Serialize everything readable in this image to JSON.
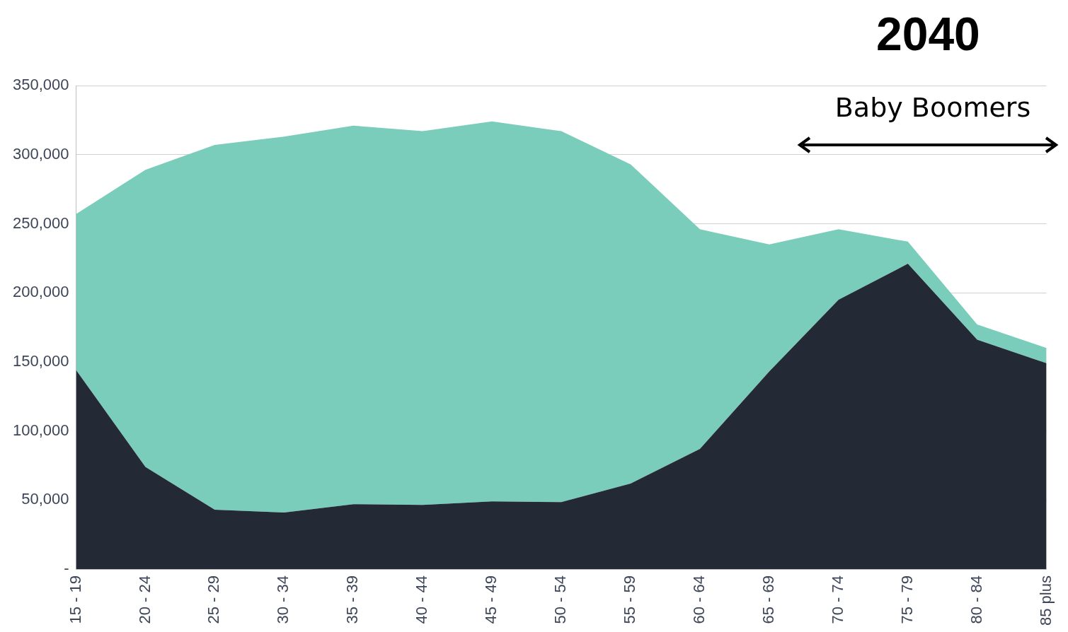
{
  "chart_data": {
    "type": "area",
    "title": "2040",
    "stacked": true,
    "categories": [
      "15 - 19",
      "20 - 24",
      "25 - 29",
      "30 - 34",
      "35 - 39",
      "40 - 44",
      "45 - 49",
      "50 - 54",
      "55 - 59",
      "60 - 64",
      "65 - 69",
      "70 - 74",
      "75 - 79",
      "80 - 84",
      "85 plus"
    ],
    "series": [
      {
        "color": "#232a35",
        "values": [
          144000,
          74000,
          43000,
          41000,
          47000,
          46500,
          49000,
          48500,
          62000,
          87000,
          143000,
          195000,
          221000,
          166000,
          149000
        ]
      },
      {
        "color": "#7bcdbb",
        "values": [
          113000,
          215000,
          264000,
          272000,
          274000,
          270500,
          275000,
          268500,
          231000,
          159000,
          92000,
          51000,
          16000,
          11000,
          11000
        ]
      }
    ],
    "ylim": [
      0,
      350000
    ],
    "yticks": [
      {
        "value": 0,
        "label": "-"
      },
      {
        "value": 50000,
        "label": "50,000"
      },
      {
        "value": 100000,
        "label": "100,000"
      },
      {
        "value": 150000,
        "label": "150,000"
      },
      {
        "value": 200000,
        "label": "200,000"
      },
      {
        "value": 250000,
        "label": "250,000"
      },
      {
        "value": 300000,
        "label": "300,000"
      },
      {
        "value": 350000,
        "label": "350,000"
      }
    ],
    "grid": "y",
    "legend": false,
    "annotations": [
      "Baby Boomers"
    ]
  }
}
